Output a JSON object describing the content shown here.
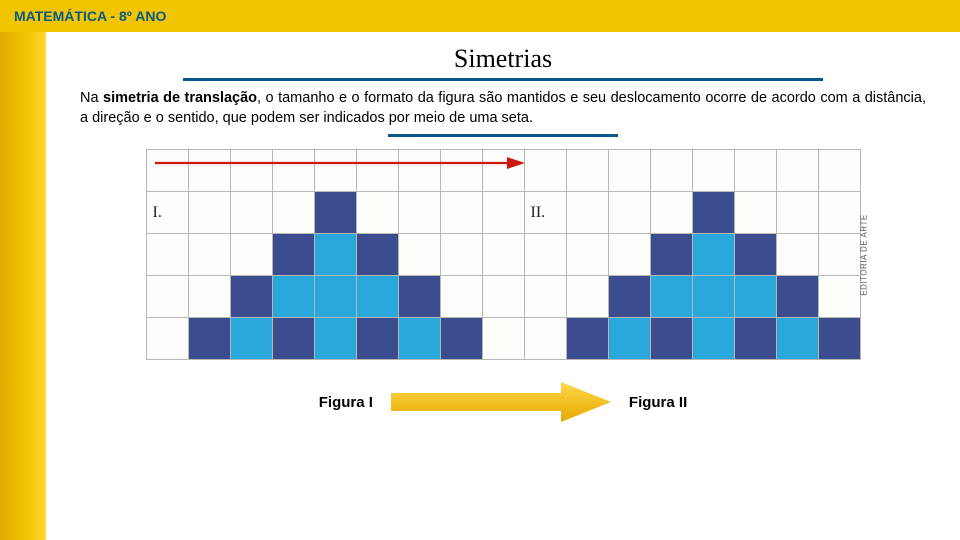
{
  "header": {
    "text": "MATEMÁTICA - 8º ANO"
  },
  "title": "Simetrias",
  "paragraph": {
    "prefix": "Na ",
    "bold": "simetria de translação",
    "rest": ", o tamanho e o formato da figura são mantidos e seu deslocamento ocorre de acordo com a distância, a direção e o sentido, que podem ser indicados por meio de uma seta."
  },
  "labels": {
    "roman1": "I.",
    "roman2": "II.",
    "fig1": "Figura I",
    "fig2": "Figura II"
  },
  "credit": "EDITORIA DE ARTE",
  "colors": {
    "headerBg": "#f2c500",
    "headerText": "#055a8a",
    "ruleBlue": "#055a8a",
    "cellDark": "#3b4d8f",
    "cellLight": "#2aa8dc",
    "gridLine": "#b8b8b2",
    "redArrow": "#cc1a10",
    "arrowLight": "#ffd94a",
    "arrowDark": "#e6a800"
  },
  "grid": {
    "cols": 17,
    "rows": 5,
    "cellSize": 42,
    "fills": {
      "dark": [
        [
          1,
          4
        ],
        [
          2,
          3
        ],
        [
          2,
          5
        ],
        [
          3,
          2
        ],
        [
          3,
          6
        ],
        [
          4,
          1
        ],
        [
          4,
          3
        ],
        [
          4,
          5
        ],
        [
          4,
          7
        ],
        [
          1,
          13
        ],
        [
          2,
          12
        ],
        [
          2,
          14
        ],
        [
          3,
          11
        ],
        [
          3,
          15
        ],
        [
          4,
          10
        ],
        [
          4,
          12
        ],
        [
          4,
          14
        ],
        [
          4,
          16
        ]
      ],
      "light": [
        [
          2,
          4
        ],
        [
          3,
          3
        ],
        [
          3,
          4
        ],
        [
          3,
          5
        ],
        [
          4,
          2
        ],
        [
          4,
          4
        ],
        [
          4,
          6
        ],
        [
          2,
          13
        ],
        [
          3,
          12
        ],
        [
          3,
          13
        ],
        [
          3,
          14
        ],
        [
          4,
          11
        ],
        [
          4,
          13
        ],
        [
          4,
          15
        ]
      ]
    }
  }
}
